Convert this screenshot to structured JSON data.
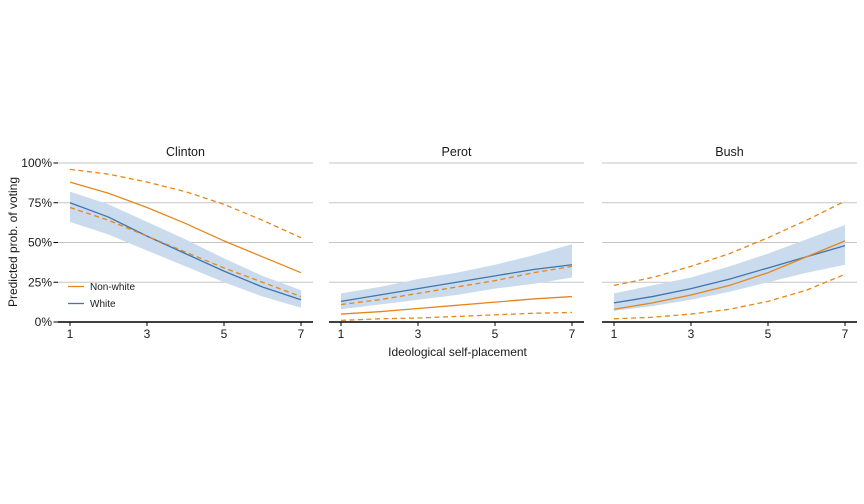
{
  "chart_data": {
    "type": "line",
    "title": "",
    "xlabel": "Ideological self-placement",
    "ylabel": "Predicted prob. of voting",
    "x": [
      1,
      2,
      3,
      4,
      5,
      6,
      7
    ],
    "x_ticks": [
      1,
      3,
      5,
      7
    ],
    "ylim": [
      0,
      100
    ],
    "y_ticks": [
      {
        "value": 0,
        "label": "0%"
      },
      {
        "value": 25,
        "label": "25%"
      },
      {
        "value": 50,
        "label": "50%"
      },
      {
        "value": 75,
        "label": "75%"
      },
      {
        "value": 100,
        "label": "100%"
      }
    ],
    "grid": "horizontal-only",
    "ci_style": {
      "white": "shaded-ribbon",
      "nonwhite": "dashed-lines"
    },
    "colors": {
      "nonwhite": "#E6861B",
      "white": "#3E76AF",
      "white_ci_fill": "#C9DBEC",
      "grid": "#C6C6C6",
      "axis": "#000000",
      "text": "#1A1A1A"
    },
    "legend": {
      "position": "inside-first-panel-lower-left",
      "entries": [
        {
          "label": "Non-white",
          "series": "nonwhite"
        },
        {
          "label": "White",
          "series": "white"
        }
      ]
    },
    "panels": [
      {
        "title": "Clinton",
        "nonwhite": {
          "fit": [
            88,
            81,
            72,
            62,
            51,
            41,
            31
          ],
          "ci_high": [
            96,
            93,
            88,
            82,
            74,
            64,
            53
          ],
          "ci_low": [
            72,
            64,
            54,
            44,
            34,
            25,
            16
          ]
        },
        "white": {
          "fit": [
            75,
            66,
            54,
            43,
            32,
            22,
            14
          ],
          "ci_high": [
            82,
            74,
            63,
            52,
            40,
            29,
            20
          ],
          "ci_low": [
            63,
            55,
            45,
            35,
            25,
            16,
            9
          ]
        }
      },
      {
        "title": "Perot",
        "nonwhite": {
          "fit": [
            5,
            6.5,
            8.5,
            10.5,
            12.5,
            14.5,
            16
          ],
          "ci_high": [
            11,
            14,
            18,
            22,
            26,
            31,
            35
          ],
          "ci_low": [
            1,
            2,
            2.5,
            3.5,
            4.5,
            5.5,
            6
          ]
        },
        "white": {
          "fit": [
            13,
            17,
            21,
            25,
            29,
            33,
            36
          ],
          "ci_high": [
            18,
            22,
            27,
            31,
            36,
            42,
            49
          ],
          "ci_low": [
            8,
            11,
            14,
            17,
            21,
            24,
            28
          ]
        }
      },
      {
        "title": "Bush",
        "nonwhite": {
          "fit": [
            8,
            12,
            17,
            23,
            31,
            41,
            51
          ],
          "ci_high": [
            23,
            28,
            35,
            43,
            53,
            64,
            76
          ],
          "ci_low": [
            2,
            3,
            5,
            8,
            13,
            20,
            30
          ]
        },
        "white": {
          "fit": [
            12,
            16,
            21,
            27,
            34,
            41,
            48
          ],
          "ci_high": [
            18,
            23,
            28,
            35,
            43,
            52,
            61
          ],
          "ci_low": [
            7,
            10,
            14,
            19,
            25,
            31,
            36
          ]
        }
      }
    ]
  }
}
